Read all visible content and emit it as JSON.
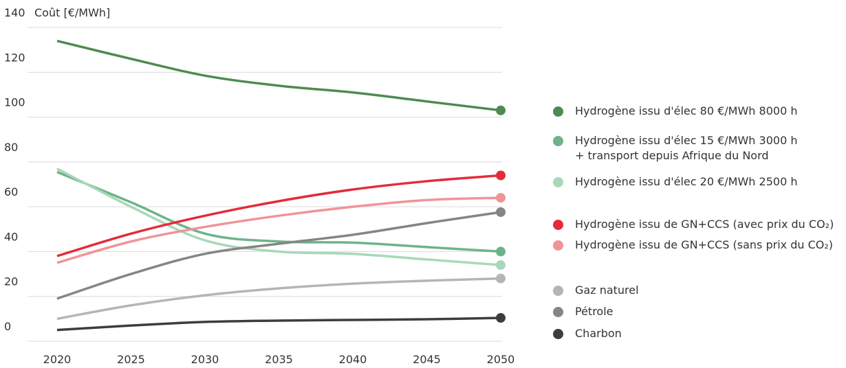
{
  "chart_data": {
    "type": "line",
    "y_label": "Coût [€/MWh]",
    "x": [
      2020,
      2025,
      2030,
      2035,
      2040,
      2045,
      2050
    ],
    "xlim": [
      2020,
      2050
    ],
    "xticks": [
      2020,
      2025,
      2030,
      2035,
      2040,
      2045,
      2050
    ],
    "ylim": [
      0,
      140
    ],
    "yticks": [
      0,
      20,
      40,
      60,
      80,
      100,
      120,
      140
    ],
    "grid": true,
    "legend": "right",
    "series": [
      {
        "name": "Hydrogène issu d'élec 80 €/MWh 8000 h",
        "color": "#4f8a52",
        "values": [
          134,
          126,
          118.5,
          114,
          111,
          107,
          103
        ]
      },
      {
        "name": "Hydrogène issu d'élec 15 €/MWh  3000 h\n+ transport depuis Afrique du Nord",
        "color": "#6db38a",
        "values": [
          75.5,
          62,
          48,
          44.5,
          44,
          42,
          40
        ]
      },
      {
        "name": "Hydrogène issu d'élec 20 €/MWh 2500 h",
        "color": "#a8d8b9",
        "values": [
          77,
          60,
          45,
          40,
          39,
          36.5,
          34
        ]
      },
      {
        "name": "Hydrogène issu de GN+CCS (avec prix du CO₂)",
        "color": "#e32b3a",
        "values": [
          38,
          48,
          56,
          62.5,
          67.7,
          71.4,
          74
        ]
      },
      {
        "name": "Hydrogène issu de GN+CCS (sans prix du CO₂)",
        "color": "#f09497",
        "values": [
          35,
          44.5,
          51,
          56,
          60,
          63,
          64
        ]
      },
      {
        "name": "Gaz naturel",
        "color": "#b5b5b7",
        "values": [
          10,
          16,
          20.5,
          23.6,
          25.7,
          27,
          28
        ]
      },
      {
        "name": "Pétrole",
        "color": "#858585",
        "values": [
          19,
          30,
          39,
          43.5,
          47.5,
          52.7,
          57.6
        ]
      },
      {
        "name": "Charbon",
        "color": "#3d3d3f",
        "values": [
          5,
          7,
          8.6,
          9.2,
          9.5,
          9.8,
          10.4
        ]
      }
    ]
  }
}
